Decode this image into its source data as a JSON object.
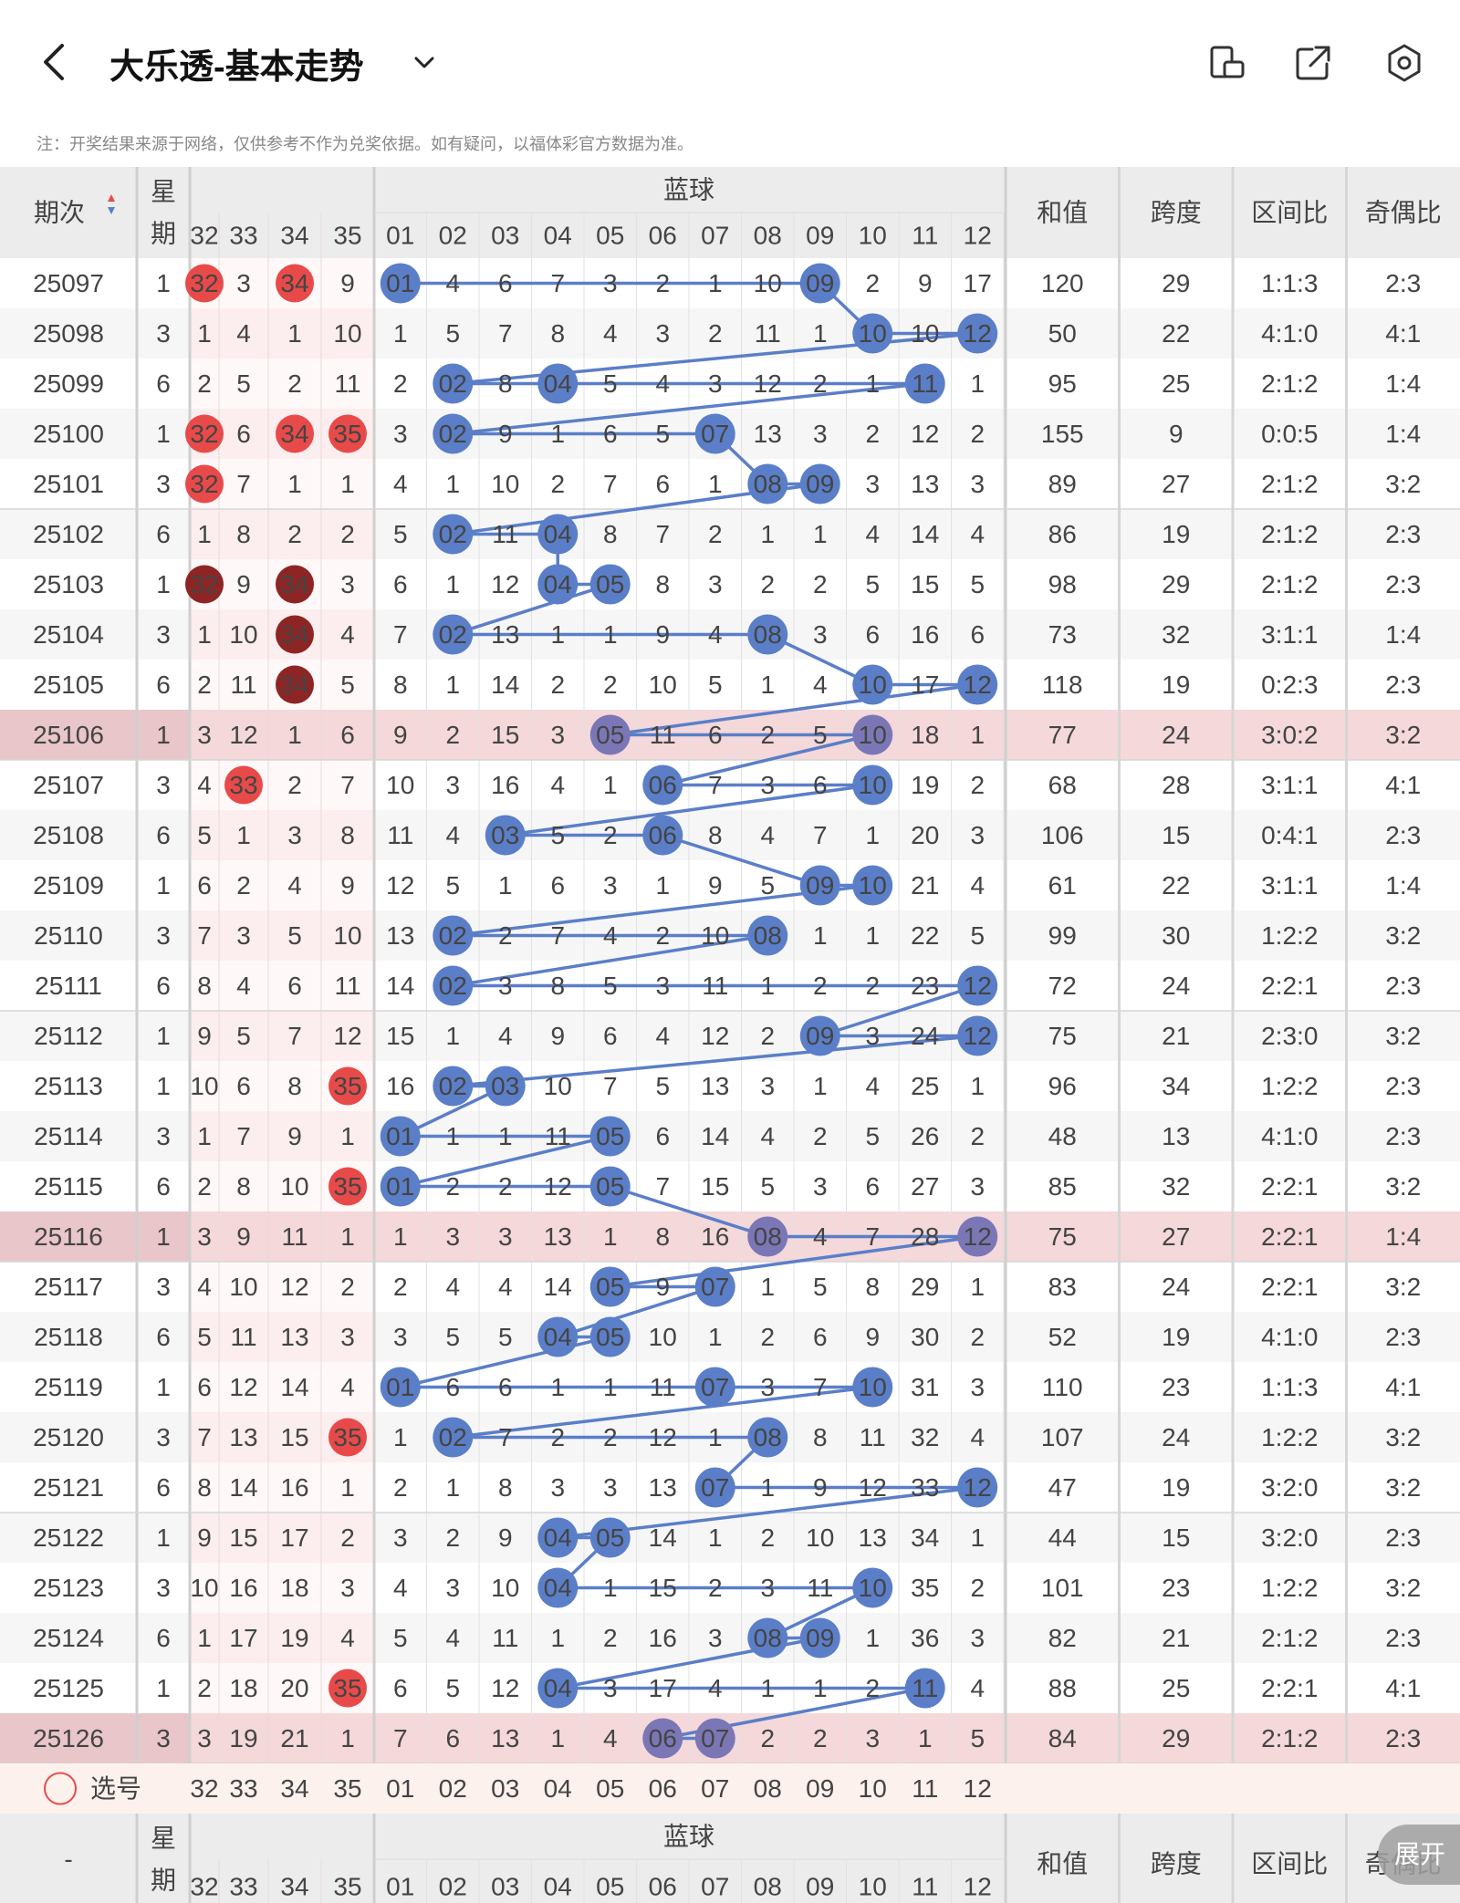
{
  "header": {
    "title": "大乐透-基本走势",
    "back_icon": "chevron-left-icon",
    "dropdown_icon": "chevron-down-icon",
    "icons": [
      "screen-rotate-icon",
      "share-icon",
      "settings-icon"
    ]
  },
  "note": "注：开奖结果来源于网络，仅供参考不作为兑奖依据。如有疑问，以福体彩官方数据为准。",
  "table": {
    "issue_header": "期次",
    "weekday_header": [
      "星",
      "期"
    ],
    "blue_group_header": "蓝球",
    "red_cols": [
      "32",
      "33",
      "34",
      "35"
    ],
    "blue_cols": [
      "01",
      "02",
      "03",
      "04",
      "05",
      "06",
      "07",
      "08",
      "09",
      "10",
      "11",
      "12"
    ],
    "stat_headers": [
      "和值",
      "跨度",
      "区间比",
      "奇偶比"
    ],
    "footer_select_label": "选号",
    "footer_issue_placeholder": "-",
    "rows": [
      {
        "issue": "25097",
        "day": "1",
        "red": [
          "32",
          "3",
          "34",
          "9"
        ],
        "redHit": [
          true,
          false,
          true,
          false
        ],
        "blue": [
          "01",
          "4",
          "6",
          "7",
          "3",
          "2",
          "1",
          "10",
          "09",
          "2",
          "9",
          "17"
        ],
        "sum": "120",
        "span": "29",
        "zone": "1:1:3",
        "oe": "2:3"
      },
      {
        "issue": "25098",
        "day": "3",
        "red": [
          "1",
          "4",
          "1",
          "10"
        ],
        "redHit": [
          false,
          false,
          false,
          false
        ],
        "blue": [
          "1",
          "5",
          "7",
          "8",
          "4",
          "3",
          "2",
          "11",
          "1",
          "10",
          "10",
          "12"
        ],
        "sum": "50",
        "span": "22",
        "zone": "4:1:0",
        "oe": "4:1"
      },
      {
        "issue": "25099",
        "day": "6",
        "red": [
          "2",
          "5",
          "2",
          "11"
        ],
        "redHit": [
          false,
          false,
          false,
          false
        ],
        "blue": [
          "2",
          "02",
          "8",
          "04",
          "5",
          "4",
          "3",
          "12",
          "2",
          "1",
          "11",
          "1"
        ],
        "sum": "95",
        "span": "25",
        "zone": "2:1:2",
        "oe": "1:4"
      },
      {
        "issue": "25100",
        "day": "1",
        "red": [
          "32",
          "6",
          "34",
          "35"
        ],
        "redHit": [
          true,
          false,
          true,
          true
        ],
        "blue": [
          "3",
          "02",
          "9",
          "1",
          "6",
          "5",
          "07",
          "13",
          "3",
          "2",
          "12",
          "2"
        ],
        "sum": "155",
        "span": "9",
        "zone": "0:0:5",
        "oe": "1:4"
      },
      {
        "issue": "25101",
        "day": "3",
        "red": [
          "32",
          "7",
          "1",
          "1"
        ],
        "redHit": [
          true,
          false,
          false,
          false
        ],
        "blue": [
          "4",
          "1",
          "10",
          "2",
          "7",
          "6",
          "1",
          "08",
          "09",
          "3",
          "13",
          "3"
        ],
        "sum": "89",
        "span": "27",
        "zone": "2:1:2",
        "oe": "3:2"
      },
      {
        "issue": "25102",
        "day": "6",
        "red": [
          "1",
          "8",
          "2",
          "2"
        ],
        "redHit": [
          false,
          false,
          false,
          false
        ],
        "blue": [
          "5",
          "02",
          "11",
          "04",
          "8",
          "7",
          "2",
          "1",
          "1",
          "4",
          "14",
          "4"
        ],
        "sum": "86",
        "span": "19",
        "zone": "2:1:2",
        "oe": "2:3"
      },
      {
        "issue": "25103",
        "day": "1",
        "red": [
          "32",
          "9",
          "34",
          "3"
        ],
        "redHit": [
          true,
          false,
          true,
          false
        ],
        "blue": [
          "6",
          "1",
          "12",
          "04",
          "05",
          "8",
          "3",
          "2",
          "2",
          "5",
          "15",
          "5"
        ],
        "sum": "98",
        "span": "29",
        "zone": "2:1:2",
        "oe": "2:3"
      },
      {
        "issue": "25104",
        "day": "3",
        "red": [
          "1",
          "10",
          "34",
          "4"
        ],
        "redHit": [
          false,
          false,
          true,
          false
        ],
        "blue": [
          "7",
          "02",
          "13",
          "1",
          "1",
          "9",
          "4",
          "08",
          "3",
          "6",
          "16",
          "6"
        ],
        "sum": "73",
        "span": "32",
        "zone": "3:1:1",
        "oe": "1:4"
      },
      {
        "issue": "25105",
        "day": "6",
        "red": [
          "2",
          "11",
          "34",
          "5"
        ],
        "redHit": [
          false,
          false,
          true,
          false
        ],
        "blue": [
          "8",
          "1",
          "14",
          "2",
          "2",
          "10",
          "5",
          "1",
          "4",
          "10",
          "17",
          "12"
        ],
        "sum": "118",
        "span": "19",
        "zone": "0:2:3",
        "oe": "2:3"
      },
      {
        "issue": "25106",
        "day": "1",
        "red": [
          "3",
          "12",
          "1",
          "6"
        ],
        "redHit": [
          false,
          false,
          false,
          false
        ],
        "blue": [
          "9",
          "2",
          "15",
          "3",
          "05",
          "11",
          "6",
          "2",
          "5",
          "10",
          "18",
          "1"
        ],
        "sum": "77",
        "span": "24",
        "zone": "3:0:2",
        "oe": "3:2"
      },
      {
        "issue": "25107",
        "day": "3",
        "red": [
          "4",
          "33",
          "2",
          "7"
        ],
        "redHit": [
          false,
          true,
          false,
          false
        ],
        "blue": [
          "10",
          "3",
          "16",
          "4",
          "1",
          "06",
          "7",
          "3",
          "6",
          "10",
          "19",
          "2"
        ],
        "sum": "68",
        "span": "28",
        "zone": "3:1:1",
        "oe": "4:1"
      },
      {
        "issue": "25108",
        "day": "6",
        "red": [
          "5",
          "1",
          "3",
          "8"
        ],
        "redHit": [
          false,
          false,
          false,
          false
        ],
        "blue": [
          "11",
          "4",
          "03",
          "5",
          "2",
          "06",
          "8",
          "4",
          "7",
          "1",
          "20",
          "3"
        ],
        "sum": "106",
        "span": "15",
        "zone": "0:4:1",
        "oe": "2:3"
      },
      {
        "issue": "25109",
        "day": "1",
        "red": [
          "6",
          "2",
          "4",
          "9"
        ],
        "redHit": [
          false,
          false,
          false,
          false
        ],
        "blue": [
          "12",
          "5",
          "1",
          "6",
          "3",
          "1",
          "9",
          "5",
          "09",
          "10",
          "21",
          "4"
        ],
        "sum": "61",
        "span": "22",
        "zone": "3:1:1",
        "oe": "1:4"
      },
      {
        "issue": "25110",
        "day": "3",
        "red": [
          "7",
          "3",
          "5",
          "10"
        ],
        "redHit": [
          false,
          false,
          false,
          false
        ],
        "blue": [
          "13",
          "02",
          "2",
          "7",
          "4",
          "2",
          "10",
          "08",
          "1",
          "1",
          "22",
          "5"
        ],
        "sum": "99",
        "span": "30",
        "zone": "1:2:2",
        "oe": "3:2"
      },
      {
        "issue": "25111",
        "day": "6",
        "red": [
          "8",
          "4",
          "6",
          "11"
        ],
        "redHit": [
          false,
          false,
          false,
          false
        ],
        "blue": [
          "14",
          "02",
          "3",
          "8",
          "5",
          "3",
          "11",
          "1",
          "2",
          "2",
          "23",
          "12"
        ],
        "sum": "72",
        "span": "24",
        "zone": "2:2:1",
        "oe": "2:3"
      },
      {
        "issue": "25112",
        "day": "1",
        "red": [
          "9",
          "5",
          "7",
          "12"
        ],
        "redHit": [
          false,
          false,
          false,
          false
        ],
        "blue": [
          "15",
          "1",
          "4",
          "9",
          "6",
          "4",
          "12",
          "2",
          "09",
          "3",
          "24",
          "12"
        ],
        "sum": "75",
        "span": "21",
        "zone": "2:3:0",
        "oe": "3:2"
      },
      {
        "issue": "25113",
        "day": "1",
        "red": [
          "10",
          "6",
          "8",
          "35"
        ],
        "redHit": [
          false,
          false,
          false,
          true
        ],
        "blue": [
          "16",
          "02",
          "03",
          "10",
          "7",
          "5",
          "13",
          "3",
          "1",
          "4",
          "25",
          "1"
        ],
        "sum": "96",
        "span": "34",
        "zone": "1:2:2",
        "oe": "2:3"
      },
      {
        "issue": "25114",
        "day": "3",
        "red": [
          "1",
          "7",
          "9",
          "1"
        ],
        "redHit": [
          false,
          false,
          false,
          false
        ],
        "blue": [
          "01",
          "1",
          "1",
          "11",
          "05",
          "6",
          "14",
          "4",
          "2",
          "5",
          "26",
          "2"
        ],
        "sum": "48",
        "span": "13",
        "zone": "4:1:0",
        "oe": "2:3"
      },
      {
        "issue": "25115",
        "day": "6",
        "red": [
          "2",
          "8",
          "10",
          "35"
        ],
        "redHit": [
          false,
          false,
          false,
          true
        ],
        "blue": [
          "01",
          "2",
          "2",
          "12",
          "05",
          "7",
          "15",
          "5",
          "3",
          "6",
          "27",
          "3"
        ],
        "sum": "85",
        "span": "32",
        "zone": "2:2:1",
        "oe": "3:2"
      },
      {
        "issue": "25116",
        "day": "1",
        "red": [
          "3",
          "9",
          "11",
          "1"
        ],
        "redHit": [
          false,
          false,
          false,
          false
        ],
        "blue": [
          "1",
          "3",
          "3",
          "13",
          "1",
          "8",
          "16",
          "08",
          "4",
          "7",
          "28",
          "12"
        ],
        "sum": "75",
        "span": "27",
        "zone": "2:2:1",
        "oe": "1:4"
      },
      {
        "issue": "25117",
        "day": "3",
        "red": [
          "4",
          "10",
          "12",
          "2"
        ],
        "redHit": [
          false,
          false,
          false,
          false
        ],
        "blue": [
          "2",
          "4",
          "4",
          "14",
          "05",
          "9",
          "07",
          "1",
          "5",
          "8",
          "29",
          "1"
        ],
        "sum": "83",
        "span": "24",
        "zone": "2:2:1",
        "oe": "3:2"
      },
      {
        "issue": "25118",
        "day": "6",
        "red": [
          "5",
          "11",
          "13",
          "3"
        ],
        "redHit": [
          false,
          false,
          false,
          false
        ],
        "blue": [
          "3",
          "5",
          "5",
          "04",
          "05",
          "10",
          "1",
          "2",
          "6",
          "9",
          "30",
          "2"
        ],
        "sum": "52",
        "span": "19",
        "zone": "4:1:0",
        "oe": "2:3"
      },
      {
        "issue": "25119",
        "day": "1",
        "red": [
          "6",
          "12",
          "14",
          "4"
        ],
        "redHit": [
          false,
          false,
          false,
          false
        ],
        "blue": [
          "01",
          "6",
          "6",
          "1",
          "1",
          "11",
          "07",
          "3",
          "7",
          "10",
          "31",
          "3"
        ],
        "sum": "110",
        "span": "23",
        "zone": "1:1:3",
        "oe": "4:1"
      },
      {
        "issue": "25120",
        "day": "3",
        "red": [
          "7",
          "13",
          "15",
          "35"
        ],
        "redHit": [
          false,
          false,
          false,
          true
        ],
        "blue": [
          "1",
          "02",
          "7",
          "2",
          "2",
          "12",
          "1",
          "08",
          "8",
          "11",
          "32",
          "4"
        ],
        "sum": "107",
        "span": "24",
        "zone": "1:2:2",
        "oe": "3:2"
      },
      {
        "issue": "25121",
        "day": "6",
        "red": [
          "8",
          "14",
          "16",
          "1"
        ],
        "redHit": [
          false,
          false,
          false,
          false
        ],
        "blue": [
          "2",
          "1",
          "8",
          "3",
          "3",
          "13",
          "07",
          "1",
          "9",
          "12",
          "33",
          "12"
        ],
        "sum": "47",
        "span": "19",
        "zone": "3:2:0",
        "oe": "3:2"
      },
      {
        "issue": "25122",
        "day": "1",
        "red": [
          "9",
          "15",
          "17",
          "2"
        ],
        "redHit": [
          false,
          false,
          false,
          false
        ],
        "blue": [
          "3",
          "2",
          "9",
          "04",
          "05",
          "14",
          "1",
          "2",
          "10",
          "13",
          "34",
          "1"
        ],
        "sum": "44",
        "span": "15",
        "zone": "3:2:0",
        "oe": "2:3"
      },
      {
        "issue": "25123",
        "day": "3",
        "red": [
          "10",
          "16",
          "18",
          "3"
        ],
        "redHit": [
          false,
          false,
          false,
          false
        ],
        "blue": [
          "4",
          "3",
          "10",
          "04",
          "1",
          "15",
          "2",
          "3",
          "11",
          "10",
          "35",
          "2"
        ],
        "sum": "101",
        "span": "23",
        "zone": "1:2:2",
        "oe": "3:2"
      },
      {
        "issue": "25124",
        "day": "6",
        "red": [
          "1",
          "17",
          "19",
          "4"
        ],
        "redHit": [
          false,
          false,
          false,
          false
        ],
        "blue": [
          "5",
          "4",
          "11",
          "1",
          "2",
          "16",
          "3",
          "08",
          "09",
          "1",
          "36",
          "3"
        ],
        "sum": "82",
        "span": "21",
        "zone": "2:1:2",
        "oe": "2:3"
      },
      {
        "issue": "25125",
        "day": "1",
        "red": [
          "2",
          "18",
          "20",
          "35"
        ],
        "redHit": [
          false,
          false,
          false,
          true
        ],
        "blue": [
          "6",
          "5",
          "12",
          "04",
          "3",
          "17",
          "4",
          "1",
          "1",
          "2",
          "11",
          "4"
        ],
        "sum": "88",
        "span": "25",
        "zone": "2:2:1",
        "oe": "4:1"
      },
      {
        "issue": "25126",
        "day": "3",
        "red": [
          "3",
          "19",
          "21",
          "1"
        ],
        "redHit": [
          false,
          false,
          false,
          false
        ],
        "blue": [
          "7",
          "6",
          "13",
          "1",
          "4",
          "06",
          "07",
          "2",
          "2",
          "3",
          "1",
          "5"
        ],
        "sum": "84",
        "span": "29",
        "zone": "2:1:2",
        "oe": "2:3"
      }
    ]
  },
  "expand_button": "展开",
  "colors": {
    "red_ball": "#e84a4a",
    "dark_red_ball": "#8e2525",
    "blue_ball": "#5b7ec8",
    "highlight_row": "#f4d8da",
    "header_bg": "#ececec"
  }
}
